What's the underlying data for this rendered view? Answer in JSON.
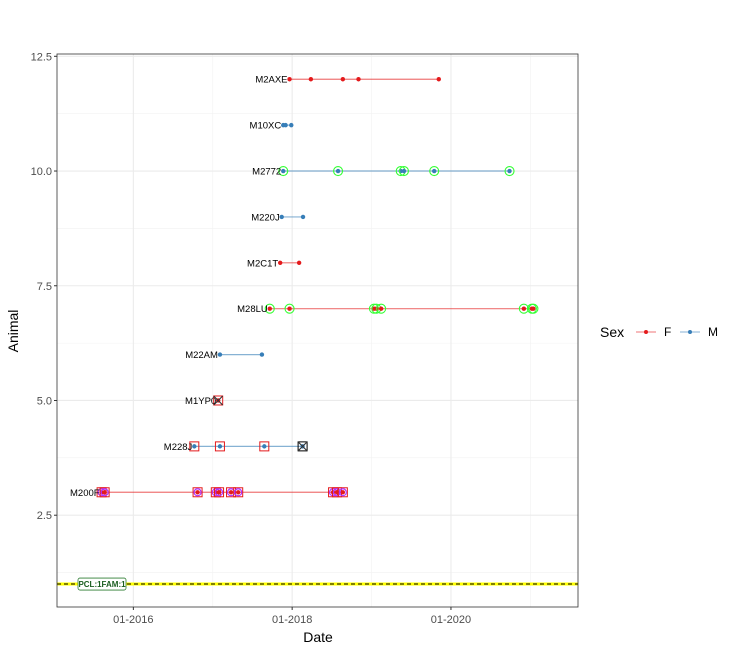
{
  "chart_data": {
    "type": "line",
    "xlabel": "Date",
    "ylabel": "Animal",
    "xlim": [
      "2015-01-15",
      "2021-08-08"
    ],
    "ylim": [
      0.5,
      12.55
    ],
    "x_ticks": [
      {
        "date": "2016-01-01",
        "label": "01-2016"
      },
      {
        "date": "2018-01-01",
        "label": "01-2018"
      },
      {
        "date": "2020-01-01",
        "label": "01-2020"
      }
    ],
    "y_ticks": [
      {
        "value": 2.5,
        "label": "2.5"
      },
      {
        "value": 5,
        "label": "5.0"
      },
      {
        "value": 7.5,
        "label": "7.5"
      },
      {
        "value": 10,
        "label": "10.0"
      },
      {
        "value": 12.5,
        "label": "12.5"
      }
    ],
    "grid": true,
    "legend": {
      "title": "Sex",
      "position": "right",
      "entries": [
        {
          "label": "F",
          "color": "#e41a1c"
        },
        {
          "label": "M",
          "color": "#377eb8"
        }
      ]
    },
    "reference_line": {
      "y": 1,
      "label": "PCL:1FAM:1",
      "color": "#ffff00"
    },
    "series": [
      {
        "name": "M2AXE",
        "y": 12,
        "sex": "F",
        "marker": "none",
        "dates": [
          "2017-12-20",
          "2018-03-28",
          "2018-08-22",
          "2018-11-02",
          "2019-11-06"
        ]
      },
      {
        "name": "M10XC",
        "y": 11,
        "sex": "M",
        "marker": "none",
        "dates": [
          "2017-11-21",
          "2017-12-02",
          "2017-12-28"
        ]
      },
      {
        "name": "M2772",
        "y": 10,
        "sex": "M",
        "marker": "green-circle",
        "dates": [
          "2017-11-21",
          "2018-07-31",
          "2019-05-15",
          "2019-05-30",
          "2019-10-16",
          "2020-09-27"
        ]
      },
      {
        "name": "M220J",
        "y": 9,
        "sex": "M",
        "marker": "none",
        "dates": [
          "2017-11-14",
          "2018-02-20"
        ]
      },
      {
        "name": "M2C1T",
        "y": 8,
        "sex": "F",
        "marker": "none",
        "dates": [
          "2017-11-07",
          "2018-02-02"
        ]
      },
      {
        "name": "M28LU",
        "y": 7,
        "sex": "F",
        "marker": "green-circle",
        "dates": [
          "2017-09-20",
          "2017-12-20",
          "2019-01-12",
          "2019-01-23",
          "2019-02-14",
          "2020-12-02",
          "2021-01-08",
          "2021-01-15"
        ]
      },
      {
        "name": "M22AM",
        "y": 6,
        "sex": "M",
        "marker": "none",
        "dates": [
          "2017-02-03",
          "2017-08-15"
        ]
      },
      {
        "name": "M1YP0",
        "y": 5,
        "sex": "F",
        "marker": "red-square-cross",
        "dates": [
          "2017-01-26"
        ]
      },
      {
        "name": "M228J",
        "y": 4,
        "sex": "M",
        "marker": "red-square",
        "last_marker": "black-square-cross",
        "dates": [
          "2016-10-08",
          "2017-02-03",
          "2017-08-26",
          "2018-02-18"
        ]
      },
      {
        "name": "M200F",
        "y": 3,
        "sex": "F",
        "marker": "red-square-purple-circle",
        "dates": [
          "2015-08-08",
          "2015-08-22",
          "2016-10-23",
          "2017-01-15",
          "2017-01-30",
          "2017-03-26",
          "2017-04-28",
          "2018-07-08",
          "2018-07-26",
          "2018-08-22"
        ]
      }
    ]
  }
}
